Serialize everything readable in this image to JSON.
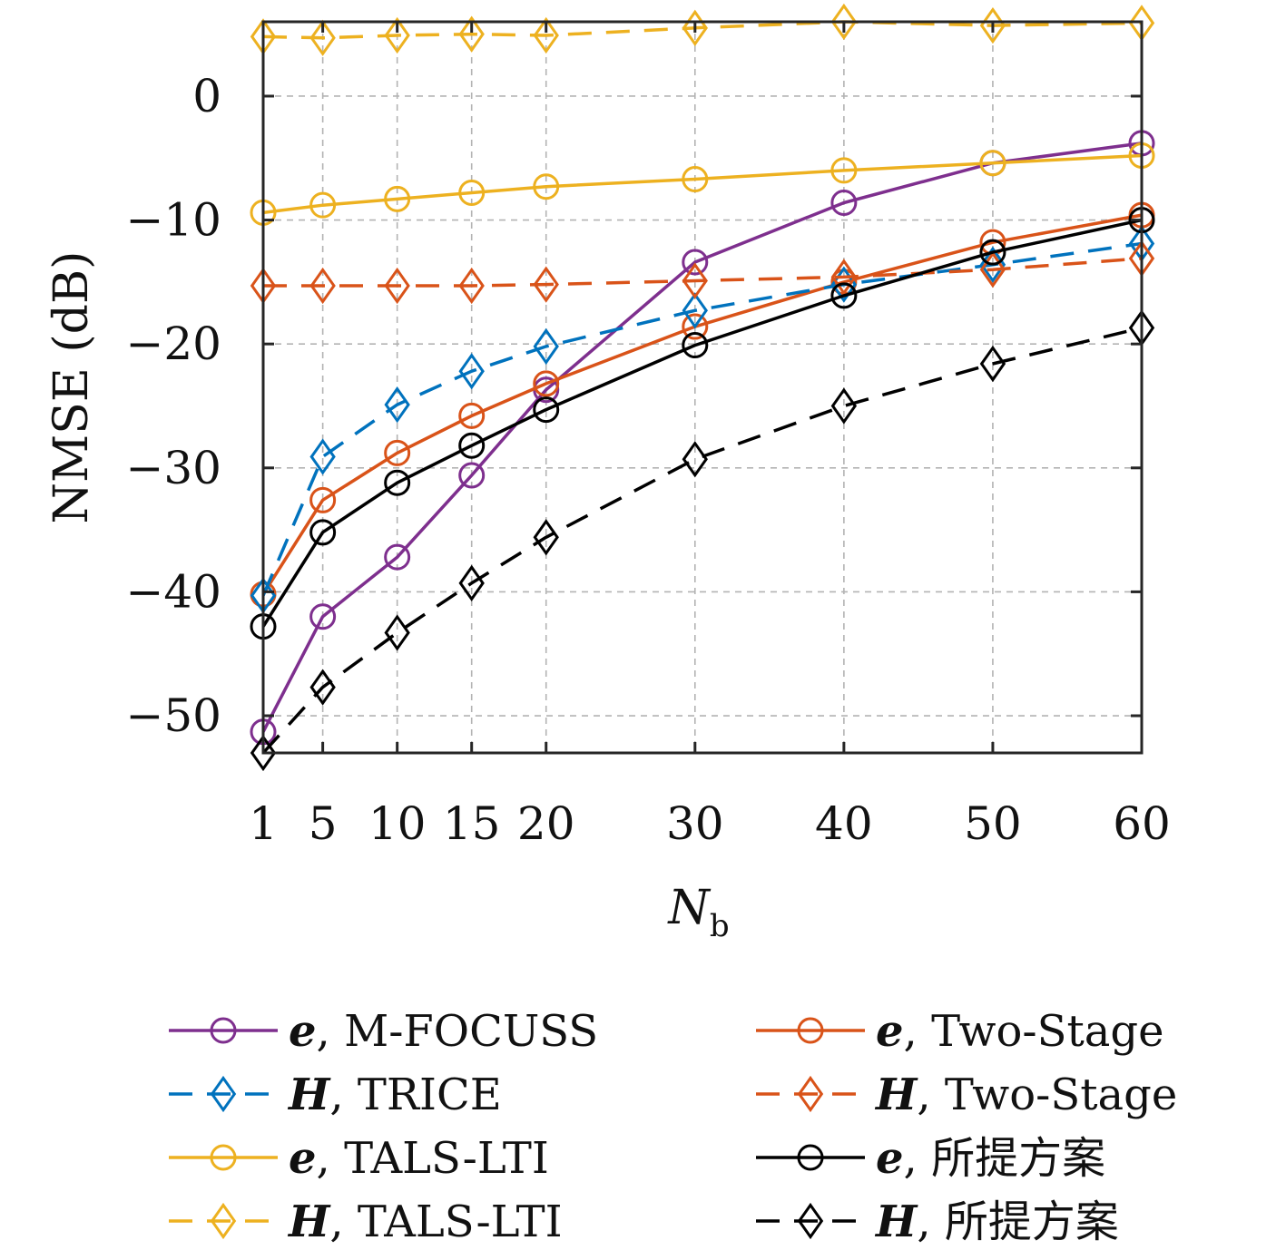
{
  "chart_data": {
    "type": "line",
    "title": "",
    "xlabel": "N",
    "xlabel_sub": "b",
    "ylabel": "NMSE (dB)",
    "x": [
      1,
      5,
      10,
      15,
      20,
      30,
      40,
      50,
      60
    ],
    "xticks": [
      "1",
      "5",
      "10",
      "15",
      "20",
      "30",
      "40",
      "50",
      "60"
    ],
    "xlim": [
      1,
      60
    ],
    "yticks": [
      0,
      -10,
      -20,
      -30,
      -40,
      -50
    ],
    "ytick_labels": [
      "0",
      "−10",
      "−20",
      "−30",
      "−40",
      "−50"
    ],
    "ylim": [
      -53,
      6
    ],
    "grid": true,
    "legend_placement": "below",
    "series": [
      {
        "name": "M-FOCUSS",
        "var": "e",
        "color": "#7E2F8E",
        "marker": "circle",
        "dash": "solid",
        "values": [
          -51.3,
          -42.0,
          -37.2,
          -30.6,
          -23.7,
          -13.4,
          -8.6,
          -5.4,
          -3.8
        ]
      },
      {
        "name": "Two-Stage",
        "var": "e",
        "color": "#D95319",
        "marker": "circle",
        "dash": "solid",
        "values": [
          -40.2,
          -32.6,
          -28.8,
          -25.8,
          -23.2,
          -18.6,
          -15.0,
          -11.8,
          -9.6
        ]
      },
      {
        "name": "TRICE",
        "var": "H",
        "color": "#0072BD",
        "marker": "diamond",
        "dash": "dashed",
        "values": [
          -40.3,
          -29.1,
          -24.9,
          -22.2,
          -20.2,
          -17.3,
          -15.2,
          -13.6,
          -11.9
        ]
      },
      {
        "name": "Two-Stage",
        "var": "H",
        "color": "#D95319",
        "marker": "diamond",
        "dash": "dashed",
        "values": [
          -15.3,
          -15.3,
          -15.3,
          -15.3,
          -15.2,
          -14.9,
          -14.6,
          -14.0,
          -13.1
        ]
      },
      {
        "name": "TALS-LTI",
        "var": "e",
        "color": "#EDB120",
        "marker": "circle",
        "dash": "solid",
        "values": [
          -9.4,
          -8.8,
          -8.3,
          -7.8,
          -7.3,
          -6.7,
          -6.0,
          -5.4,
          -4.8
        ]
      },
      {
        "name": "所提方案",
        "var": "e",
        "color": "#000000",
        "marker": "circle",
        "dash": "solid",
        "values": [
          -42.8,
          -35.2,
          -31.2,
          -28.2,
          -25.3,
          -20.1,
          -16.1,
          -12.6,
          -10.0
        ]
      },
      {
        "name": "TALS-LTI",
        "var": "H",
        "color": "#EDB120",
        "marker": "diamond",
        "dash": "dashed",
        "values": [
          4.8,
          4.7,
          4.9,
          5.0,
          4.9,
          5.5,
          6.0,
          5.7,
          5.9
        ]
      },
      {
        "name": "所提方案",
        "var": "H",
        "color": "#000000",
        "marker": "diamond",
        "dash": "dashed",
        "values": [
          -53.0,
          -47.7,
          -43.3,
          -39.3,
          -35.6,
          -29.3,
          -25.0,
          -21.6,
          -18.7
        ]
      }
    ],
    "legend": [
      {
        "var": "e",
        "name": "M-FOCUSS",
        "series_index": 0
      },
      {
        "var": "H",
        "name": "TRICE",
        "series_index": 2
      },
      {
        "var": "e",
        "name": "TALS-LTI",
        "series_index": 4
      },
      {
        "var": "H",
        "name": "TALS-LTI",
        "series_index": 6
      },
      {
        "var": "e",
        "name": "Two-Stage",
        "series_index": 1
      },
      {
        "var": "H",
        "name": "Two-Stage",
        "series_index": 3
      },
      {
        "var": "e",
        "name": "所提方案",
        "series_index": 5
      },
      {
        "var": "H",
        "name": "所提方案",
        "series_index": 7
      }
    ]
  }
}
